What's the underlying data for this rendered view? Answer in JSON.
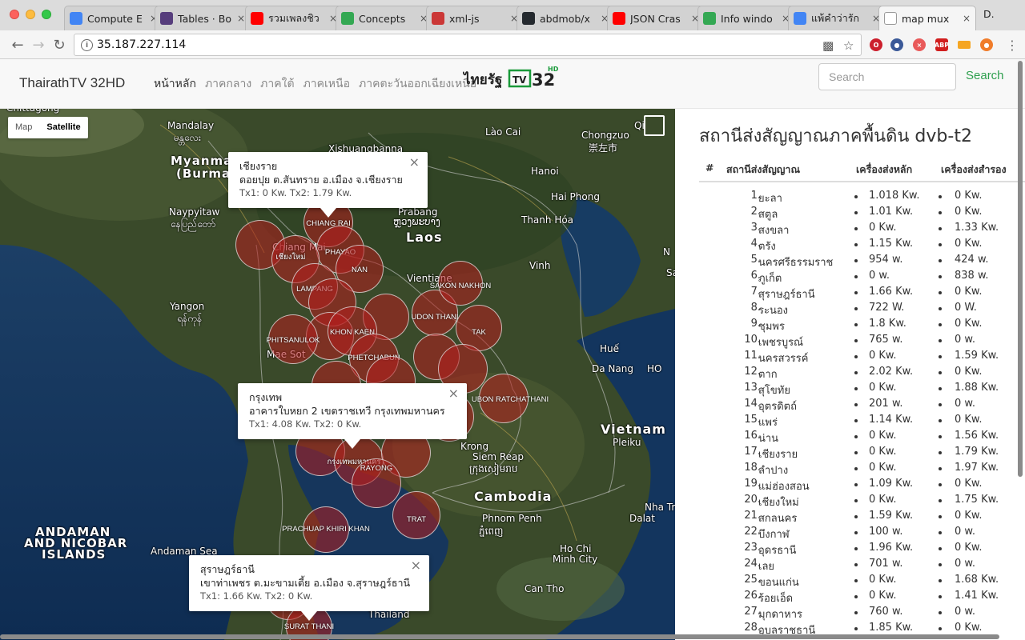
{
  "browser": {
    "tabs": [
      {
        "title": "Compute E",
        "icon": "chip-icon",
        "color": "#4285f4"
      },
      {
        "title": "Tables · Bo",
        "icon": "bootstrap-icon",
        "color": "#563d7c"
      },
      {
        "title": "รวมเพลงชิว",
        "icon": "youtube-icon",
        "color": "#ff0000"
      },
      {
        "title": "Concepts",
        "icon": "google-maps-icon",
        "color": "#34a853"
      },
      {
        "title": "xml-js",
        "icon": "npm-icon",
        "color": "#cb3837"
      },
      {
        "title": "abdmob/x",
        "icon": "github-icon",
        "color": "#24292e"
      },
      {
        "title": "JSON Cras",
        "icon": "youtube-icon",
        "color": "#ff0000"
      },
      {
        "title": "Info windo",
        "icon": "google-maps-icon",
        "color": "#34a853"
      },
      {
        "title": "แพ้คำว่ารัก",
        "icon": "google-icon",
        "color": "#4285f4"
      },
      {
        "title": "map mux",
        "icon": "page-icon",
        "color": "#ffffff",
        "active": true
      }
    ],
    "profile": "D.",
    "url": "35.187.227.114"
  },
  "navbar": {
    "brand": "ThairathTV 32HD",
    "links": [
      "หน้าหลัก",
      "ภาคกลาง",
      "ภาคใต้",
      "ภาคเหนือ",
      "ภาคตะวันออกเฉียงเหนือ"
    ],
    "logo_text": "ไทยรัฐ",
    "logo_tv": "TV",
    "logo_num": "32",
    "logo_hd": "HD",
    "search_placeholder": "Search",
    "search_button": "Search"
  },
  "map": {
    "controls": {
      "map": "Map",
      "satellite": "Satellite"
    },
    "labels": [
      {
        "text": "Chittagong",
        "cls": ""
      },
      {
        "text": "Mandalay",
        "cls": ""
      },
      {
        "text": "မန္တလေး",
        "cls": ""
      },
      {
        "text": "Myanma",
        "cls": "country"
      },
      {
        "text": "(Burma",
        "cls": "country"
      },
      {
        "text": "Naypyitaw",
        "cls": ""
      },
      {
        "text": "နေပြည်တော်",
        "cls": ""
      },
      {
        "text": "Yangon",
        "cls": ""
      },
      {
        "text": "ရန်ကုန်",
        "cls": ""
      },
      {
        "text": "Xishuangbanna",
        "cls": ""
      },
      {
        "text": "Lào Cai",
        "cls": ""
      },
      {
        "text": "Chongzuo",
        "cls": ""
      },
      {
        "text": "崇左市",
        "cls": ""
      },
      {
        "text": "Hanoi",
        "cls": ""
      },
      {
        "text": "Hai Phong",
        "cls": ""
      },
      {
        "text": "Prabang",
        "cls": ""
      },
      {
        "text": "ຫຼວງພະບາງ",
        "cls": ""
      },
      {
        "text": "Laos",
        "cls": "big"
      },
      {
        "text": "Thanh Hóa",
        "cls": ""
      },
      {
        "text": "Vinh",
        "cls": ""
      },
      {
        "text": "Vientiane",
        "cls": ""
      },
      {
        "text": "Huế",
        "cls": ""
      },
      {
        "text": "Da Nang",
        "cls": ""
      },
      {
        "text": "Vietnam",
        "cls": "big"
      },
      {
        "text": "Pleiku",
        "cls": ""
      },
      {
        "text": "Krong",
        "cls": ""
      },
      {
        "text": "Siem Reap",
        "cls": ""
      },
      {
        "text": "ក្រុងសៀមរាប",
        "cls": ""
      },
      {
        "text": "Cambodia",
        "cls": "big"
      },
      {
        "text": "Phnom Penh",
        "cls": ""
      },
      {
        "text": "ភ្នំពេញ",
        "cls": ""
      },
      {
        "text": "Ho Chi",
        "cls": ""
      },
      {
        "text": "Minh City",
        "cls": ""
      },
      {
        "text": "Dalat",
        "cls": ""
      },
      {
        "text": "Nha Tr",
        "cls": ""
      },
      {
        "text": "Can Tho",
        "cls": ""
      },
      {
        "text": "ANDAMAN",
        "cls": "country"
      },
      {
        "text": "AND NICOBAR",
        "cls": "country"
      },
      {
        "text": "ISLANDS",
        "cls": "country"
      },
      {
        "text": "Andaman Sea",
        "cls": ""
      },
      {
        "text": "Thailand",
        "cls": ""
      },
      {
        "text": "Mae Sot",
        "cls": ""
      },
      {
        "text": "Chiang Mai",
        "cls": ""
      },
      {
        "text": "HO",
        "cls": ""
      },
      {
        "text": "Sa",
        "cls": ""
      },
      {
        "text": "Qi",
        "cls": ""
      },
      {
        "text": "N",
        "cls": ""
      }
    ],
    "stations": [
      {
        "name": "CHIANG RAI"
      },
      {
        "name": "PHAYAO"
      },
      {
        "name": ""
      },
      {
        "name": "เชียงใหม่"
      },
      {
        "name": "NAN"
      },
      {
        "name": "LAMPANG"
      },
      {
        "name": ""
      },
      {
        "name": ""
      },
      {
        "name": ""
      },
      {
        "name": "UDON THANI"
      },
      {
        "name": "SAKON NAKHON"
      },
      {
        "name": "TAK"
      },
      {
        "name": "PHITSANULOK"
      },
      {
        "name": "KHON KAEN"
      },
      {
        "name": ""
      },
      {
        "name": "PHETCHABUN"
      },
      {
        "name": ""
      },
      {
        "name": ""
      },
      {
        "name": ""
      },
      {
        "name": "UBON RATCHATHANI"
      },
      {
        "name": ""
      },
      {
        "name": ""
      },
      {
        "name": "กรุงเทพมหานคร"
      },
      {
        "name": ""
      },
      {
        "name": "RAYONG"
      },
      {
        "name": "TRAT"
      },
      {
        "name": "PRACHUAP KHIRI KHAN"
      },
      {
        "name": ""
      },
      {
        "name": "SURAT THANI"
      }
    ],
    "infowindows": [
      {
        "title": "เชียงราย",
        "address": "ดอยปุย ต.สันทราย อ.เมือง จ.เชียงราย",
        "tx": "Tx1: 0 Kw. Tx2: 1.79 Kw."
      },
      {
        "title": "กรุงเทพ",
        "address": "อาคารใบหยก 2 เขตราชเทวี กรุงเทพมหานคร",
        "tx": "Tx1: 4.08 Kw. Tx2: 0 Kw."
      },
      {
        "title": "สุราษฎร์ธานี",
        "address": "เขาท่าเพชร ต.มะขามเตี้ย อ.เมือง จ.สุราษฎร์ธานี",
        "tx": "Tx1: 1.66 Kw. Tx2: 0 Kw."
      }
    ]
  },
  "panel": {
    "title": "สถานีส่งสัญญาณภาคพื้นดิน dvb-t2",
    "headers": [
      "#",
      "สถานีส่งสัญญาณ",
      "เครื่องส่งหลัก",
      "เครื่องส่งสำรอง"
    ],
    "rows": [
      [
        "1.",
        "ยะลา",
        "1.018 Kw.",
        "0 Kw."
      ],
      [
        "2.",
        "สตูล",
        "1.01 Kw.",
        "0 Kw."
      ],
      [
        "3.",
        "สงขลา",
        "0 Kw.",
        "1.33 Kw."
      ],
      [
        "4.",
        "ตรัง",
        "1.15 Kw.",
        "0 Kw."
      ],
      [
        "5.",
        "นครศรีธรรมราช",
        "954 w.",
        "424 w."
      ],
      [
        "6.",
        "ภูเก็ต",
        "0 w.",
        "838 w."
      ],
      [
        "7.",
        "สุราษฎร์ธานี",
        "1.66 Kw.",
        "0 Kw."
      ],
      [
        "8.",
        "ระนอง",
        "722 W.",
        "0 W."
      ],
      [
        "9.",
        "ชุมพร",
        "1.8 Kw.",
        "0 Kw."
      ],
      [
        "10.",
        "เพชรบูรณ์",
        "765 w.",
        "0 w."
      ],
      [
        "11.",
        "นครสวรรค์",
        "0 Kw.",
        "1.59 Kw."
      ],
      [
        "12.",
        "ตาก",
        "2.02 Kw.",
        "0 Kw."
      ],
      [
        "13.",
        "สุโขทัย",
        "0 Kw.",
        "1.88 Kw."
      ],
      [
        "14.",
        "อุตรดิตถ์",
        "201 w.",
        "0 w."
      ],
      [
        "15.",
        "แพร่",
        "1.14 Kw.",
        "0 Kw."
      ],
      [
        "16.",
        "น่าน",
        "0 Kw.",
        "1.56 Kw."
      ],
      [
        "17.",
        "เชียงราย",
        "0 Kw.",
        "1.79 Kw."
      ],
      [
        "18.",
        "ลำปาง",
        "0 Kw.",
        "1.97 Kw."
      ],
      [
        "19.",
        "แม่ฮ่องสอน",
        "1.09 Kw.",
        "0 Kw."
      ],
      [
        "20.",
        "เชียงใหม่",
        "0 Kw.",
        "1.75 Kw."
      ],
      [
        "21.",
        "สกลนคร",
        "1.59 Kw.",
        "0 Kw."
      ],
      [
        "22.",
        "บึงกาฬ",
        "100 w.",
        "0 w."
      ],
      [
        "23.",
        "อุดรธานี",
        "1.96 Kw.",
        "0 Kw."
      ],
      [
        "24.",
        "เลย",
        "701 w.",
        "0 w."
      ],
      [
        "25.",
        "ขอนแก่น",
        "0 Kw.",
        "1.68 Kw."
      ],
      [
        "26.",
        "ร้อยเอ็ด",
        "0 Kw.",
        "1.41 Kw."
      ],
      [
        "27.",
        "มุกดาหาร",
        "760 w.",
        "0 w."
      ],
      [
        "28.",
        "อุบลราชธานี",
        "1.85 Kw.",
        "0 Kw."
      ]
    ]
  }
}
